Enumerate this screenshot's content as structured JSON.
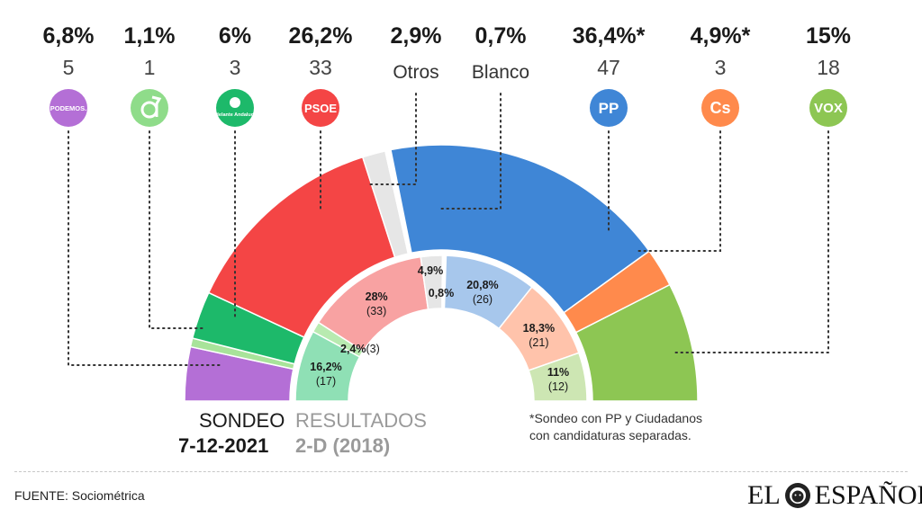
{
  "chart_data": {
    "type": "pie",
    "subtype": "double-semicircle",
    "outer_ring": {
      "title_line1": "SONDEO",
      "title_line2": "7-12-2021",
      "slices": [
        {
          "party": "Podemos",
          "logo": "PODEMOS.",
          "pct_label": "6,8%",
          "value": 6.8,
          "seats": "5",
          "color": "#b46fd6"
        },
        {
          "party": "Andaluces",
          "logo": "andaluces-arrow-icon",
          "pct_label": "1,1%",
          "value": 1.1,
          "seats": "1",
          "color": "#a8e39a"
        },
        {
          "party": "Adelante Andalucía",
          "logo": "Adelante Andalucía",
          "pct_label": "6%",
          "value": 6.0,
          "seats": "3",
          "color": "#1db96a"
        },
        {
          "party": "PSOE",
          "logo": "PSOE",
          "pct_label": "26,2%",
          "value": 26.2,
          "seats": "33",
          "color": "#f44545"
        },
        {
          "party": "Otros",
          "logo": "",
          "pct_label": "2,9%",
          "value": 2.9,
          "seats": "Otros",
          "color": "#e6e6e6"
        },
        {
          "party": "Blanco",
          "logo": "",
          "pct_label": "0,7%",
          "value": 0.7,
          "seats": "Blanco",
          "color": "#ffffff"
        },
        {
          "party": "PP",
          "logo": "PP",
          "pct_label": "36,4%*",
          "value": 36.4,
          "seats": "47",
          "color": "#3f86d6"
        },
        {
          "party": "Ciudadanos",
          "logo": "Cs",
          "pct_label": "4,9%*",
          "value": 4.9,
          "seats": "3",
          "color": "#ff8a4c"
        },
        {
          "party": "Vox",
          "logo": "VOX",
          "pct_label": "15%",
          "value": 15.0,
          "seats": "18",
          "color": "#8dc653"
        }
      ]
    },
    "inner_ring": {
      "title_line1": "RESULTADOS",
      "title_line2": "2-D (2018)",
      "slices": [
        {
          "party": "Adelante Andalucía",
          "pct_label": "16,2%",
          "seats_label": "(17)",
          "value": 16.2,
          "color": "#8fe0b5"
        },
        {
          "party": "Otros",
          "pct_label": "2,4%",
          "seats_label": "(3)",
          "value": 2.4,
          "color": "#b8eab0"
        },
        {
          "party": "PSOE",
          "pct_label": "28%",
          "seats_label": "(33)",
          "value": 28.0,
          "color": "#f8a2a2"
        },
        {
          "party": "Otros",
          "pct_label": "4,9%",
          "seats_label": "",
          "value": 4.9,
          "color": "#e6e6e6"
        },
        {
          "party": "Blanco",
          "pct_label": "0,8%",
          "seats_label": "",
          "value": 0.8,
          "color": "#ffffff"
        },
        {
          "party": "PP",
          "pct_label": "20,8%",
          "seats_label": "(26)",
          "value": 20.8,
          "color": "#a7c7ec"
        },
        {
          "party": "Ciudadanos",
          "pct_label": "18,3%",
          "seats_label": "(21)",
          "value": 18.3,
          "color": "#ffc3ab"
        },
        {
          "party": "Vox",
          "pct_label": "11%",
          "seats_label": "(12)",
          "value": 11.0,
          "color": "#cde6b3"
        }
      ]
    }
  },
  "footnote_line1": "*Sondeo con PP y Ciudadanos",
  "footnote_line2": "con candidaturas separadas.",
  "source": "FUENTE: Sociométrica",
  "brand": "EL ESPAÑOL",
  "brand_left": "EL",
  "brand_right": "ESPAÑOL",
  "brand_icon": "lion-icon"
}
